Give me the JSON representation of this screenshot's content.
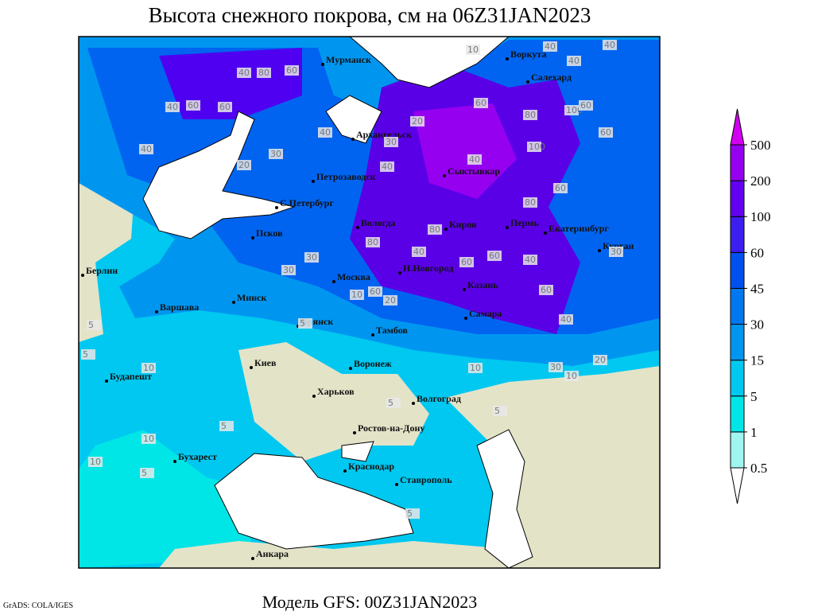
{
  "title": "Высота снежного покрова, см на 06Z31JAN2023",
  "model": "Модель GFS: 00Z31JAN2023",
  "credit": "GrADS: COLA/IGES",
  "legend": {
    "levels": [
      0.5,
      1,
      5,
      15,
      30,
      45,
      60,
      100,
      200,
      500
    ],
    "colors": [
      "#ffffff",
      "#9ff5f0",
      "#00e6e6",
      "#00c8f0",
      "#0096f0",
      "#0078f0",
      "#0050f0",
      "#3c1ef0",
      "#6400f0",
      "#9600f0",
      "#d200f0"
    ]
  },
  "cities": [
    "Мурманск",
    "Воркута",
    "Салехард",
    "Архангельск",
    "Петрозаводск",
    "Сыктывкар",
    "С.Петербург",
    "Вологда",
    "Киров",
    "Пермь",
    "Екатеринбург",
    "Курган",
    "Псков",
    "Берлин",
    "Москва",
    "Н.Новгород",
    "Казань",
    "Минск",
    "Варшава",
    "Самара",
    "Брянск",
    "Тамбов",
    "Воронеж",
    "Киев",
    "Будапешт",
    "Харьков",
    "Волгоград",
    "Ростов-на-Дону",
    "Бухарест",
    "Краснодар",
    "Ставрополь",
    "Анкара"
  ],
  "contour_labels": [
    10,
    40,
    40,
    40,
    60,
    40,
    80,
    60,
    40,
    60,
    40,
    30,
    40,
    40,
    20,
    30,
    60,
    40,
    100,
    60,
    80,
    100,
    60,
    80,
    60,
    80,
    40,
    60,
    80,
    60,
    60,
    30,
    20,
    30,
    10,
    20,
    40,
    30,
    10,
    20,
    5,
    5,
    10,
    10,
    5,
    10,
    5,
    5,
    5,
    5,
    10,
    5,
    30,
    40,
    60
  ]
}
